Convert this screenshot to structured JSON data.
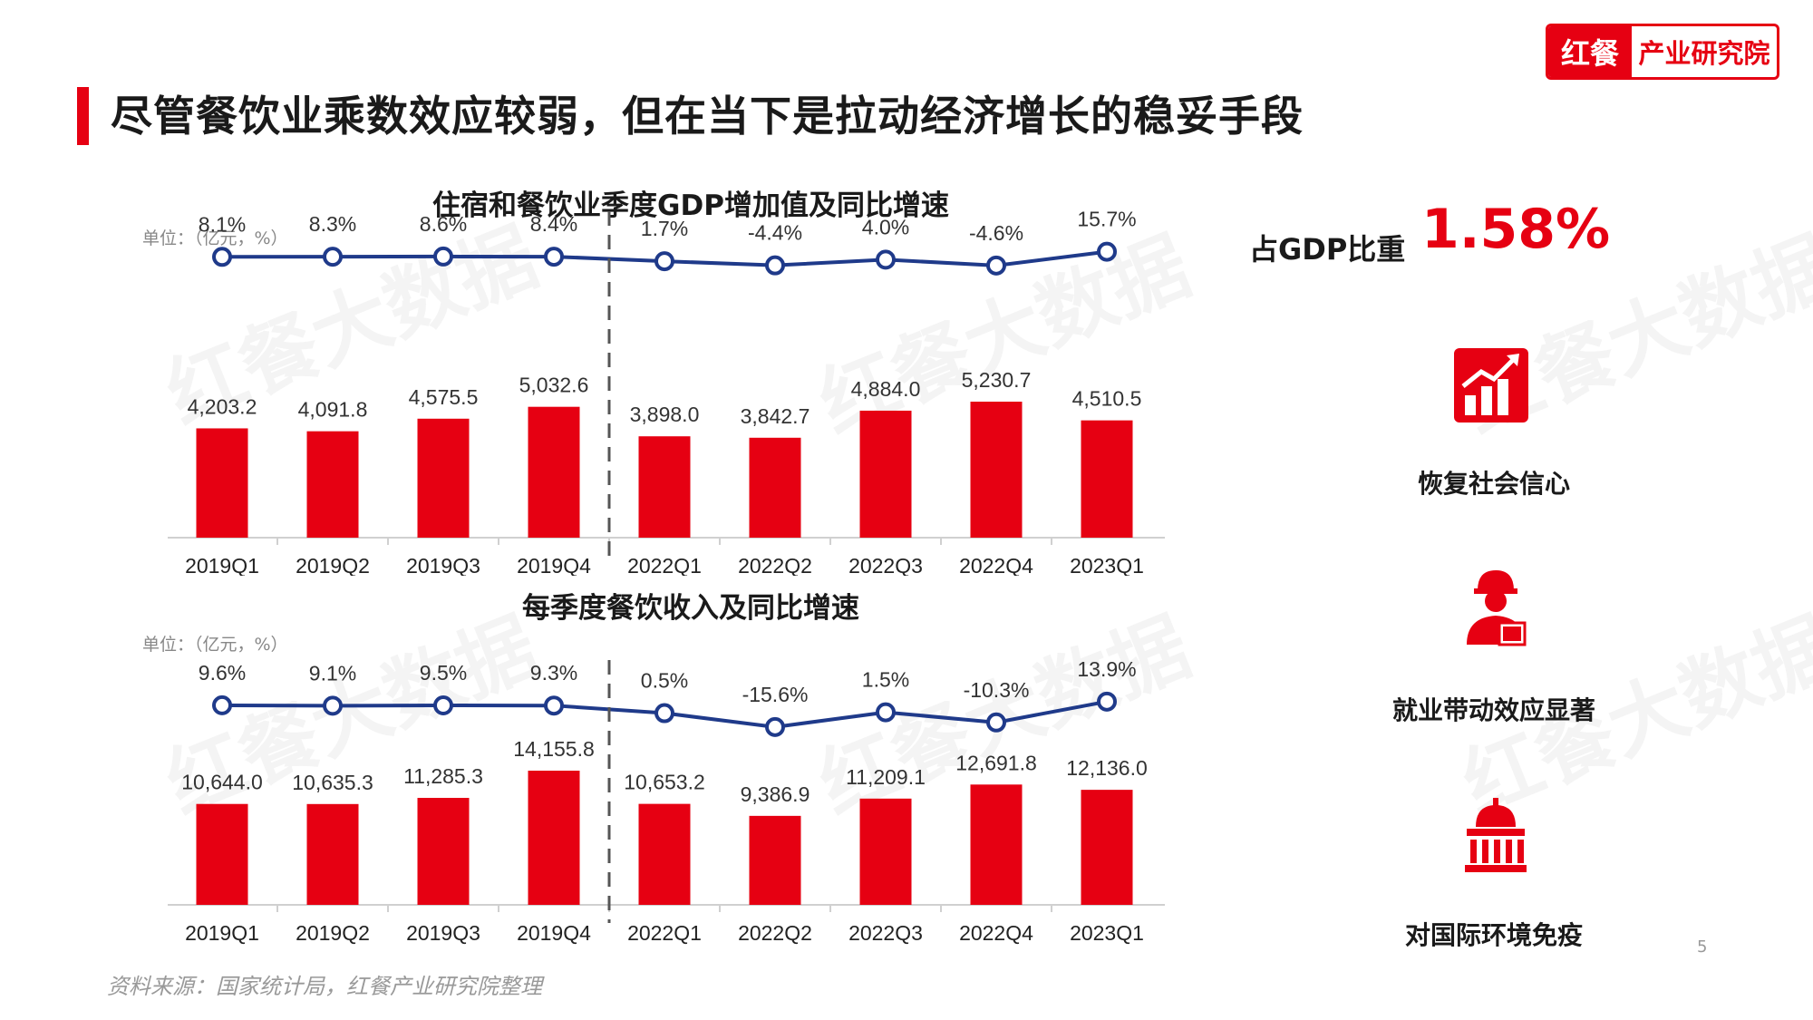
{
  "header": {
    "title": "尽管餐饮业乘数效应较弱，但在当下是拉动经济增长的稳妥手段",
    "logo_mark": "红餐",
    "logo_text": "产业研究院"
  },
  "watermark_text": "红餐大数据",
  "chart_data": [
    {
      "type": "bar",
      "title": "住宿和餐饮业季度GDP增加值及同比增速",
      "unit_label": "单位：（亿元，%）",
      "categories": [
        "2019Q1",
        "2019Q2",
        "2019Q3",
        "2019Q4",
        "2022Q1",
        "2022Q2",
        "2022Q3",
        "2022Q4",
        "2023Q1"
      ],
      "series": [
        {
          "type": "bar",
          "values": [
            4203.2,
            4091.8,
            4575.5,
            5032.6,
            3898.0,
            3842.7,
            4884.0,
            5230.7,
            4510.5
          ],
          "labels": [
            "4,203.2",
            "4,091.8",
            "4,575.5",
            "5,032.6",
            "3,898.0",
            "3,842.7",
            "4,884.0",
            "5,230.7",
            "4,510.5"
          ],
          "color": "#e60012"
        },
        {
          "type": "line",
          "values": [
            8.1,
            8.3,
            8.6,
            8.4,
            1.7,
            -4.4,
            4.0,
            -4.6,
            15.7
          ],
          "labels": [
            "8.1%",
            "8.3%",
            "8.6%",
            "8.4%",
            "1.7%",
            "-4.4%",
            "4.0%",
            "-4.6%",
            "15.7%"
          ],
          "color": "#1f3a8a"
        }
      ],
      "divider_after_index": 3
    },
    {
      "type": "bar",
      "title": "每季度餐饮收入及同比增速",
      "unit_label": "单位：（亿元，%）",
      "categories": [
        "2019Q1",
        "2019Q2",
        "2019Q3",
        "2019Q4",
        "2022Q1",
        "2022Q2",
        "2022Q3",
        "2022Q4",
        "2023Q1"
      ],
      "series": [
        {
          "type": "bar",
          "values": [
            10644.0,
            10635.3,
            11285.3,
            14155.8,
            10653.2,
            9386.9,
            11209.1,
            12691.8,
            12136.0
          ],
          "labels": [
            "10,644.0",
            "10,635.3",
            "11,285.3",
            "14,155.8",
            "10,653.2",
            "9,386.9",
            "11,209.1",
            "12,691.8",
            "12,136.0"
          ],
          "color": "#e60012"
        },
        {
          "type": "line",
          "values": [
            9.6,
            9.1,
            9.5,
            9.3,
            0.5,
            -15.6,
            1.5,
            -10.3,
            13.9
          ],
          "labels": [
            "9.6%",
            "9.1%",
            "9.5%",
            "9.3%",
            "0.5%",
            "-15.6%",
            "1.5%",
            "-10.3%",
            "13.9%"
          ],
          "color": "#1f3a8a"
        }
      ],
      "divider_after_index": 3
    }
  ],
  "side_panel": {
    "share_label": "占GDP比重",
    "share_value": "1.58%",
    "items": [
      {
        "label": "恢复社会信心",
        "icon": "bar-chart-up-icon"
      },
      {
        "label": "就业带动效应显著",
        "icon": "delivery-worker-icon"
      },
      {
        "label": "对国际环境免疫",
        "icon": "government-building-icon"
      }
    ],
    "accent_color": "#e60012"
  },
  "footer": {
    "source": "资料来源：国家统计局，红餐产业研究院整理",
    "page_number": "5"
  }
}
